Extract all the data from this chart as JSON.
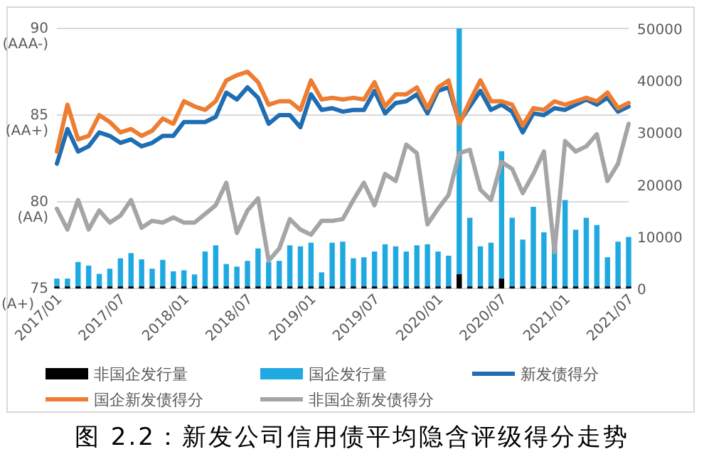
{
  "chart_data": {
    "type": "line",
    "title": "图 2.2：新发公司信用债平均隐含评级得分走势",
    "categories": [
      "2017/01",
      null,
      null,
      null,
      null,
      null,
      "2017/07",
      null,
      null,
      null,
      null,
      null,
      "2018/01",
      null,
      null,
      null,
      null,
      null,
      "2018/07",
      null,
      null,
      null,
      null,
      null,
      "2019/01",
      null,
      null,
      null,
      null,
      null,
      "2019/07",
      null,
      null,
      null,
      null,
      null,
      "2020/01",
      null,
      null,
      null,
      null,
      null,
      "2020/07",
      null,
      null,
      null,
      null,
      null,
      "2021/01",
      null,
      null,
      null,
      null,
      null,
      "2021/07"
    ],
    "series": [
      {
        "name": "非国企发行量",
        "type": "bar",
        "axis": "y2",
        "color": "#000000",
        "values": [
          400,
          400,
          400,
          400,
          400,
          400,
          400,
          400,
          400,
          400,
          400,
          400,
          400,
          400,
          400,
          400,
          400,
          400,
          400,
          400,
          400,
          400,
          400,
          400,
          400,
          400,
          400,
          400,
          400,
          400,
          400,
          400,
          400,
          400,
          400,
          400,
          400,
          400,
          2800,
          400,
          400,
          400,
          1900,
          400,
          400,
          400,
          400,
          400,
          400,
          400,
          400,
          400,
          400,
          400,
          400
        ]
      },
      {
        "name": "国企发行量",
        "type": "bar",
        "axis": "y2",
        "color": "#1fa9e1",
        "values": [
          1500,
          1500,
          4700,
          4000,
          2400,
          3400,
          5400,
          6400,
          5200,
          3400,
          5100,
          2900,
          3100,
          2300,
          6700,
          7900,
          4300,
          3800,
          4900,
          7300,
          4700,
          4900,
          7900,
          7700,
          8400,
          2700,
          8400,
          8600,
          5400,
          5600,
          6700,
          8100,
          7700,
          6700,
          7900,
          8100,
          6700,
          5900,
          47200,
          13200,
          7700,
          8400,
          24500,
          13200,
          9000,
          15300,
          10400,
          7600,
          16600,
          10900,
          13200,
          11800,
          5600,
          8600,
          9500
        ]
      },
      {
        "name": "新发债得分",
        "color": "#1f6db3",
        "values": [
          82.2,
          84.2,
          82.9,
          83.2,
          84.0,
          83.8,
          83.4,
          83.6,
          83.2,
          83.4,
          83.8,
          83.8,
          84.6,
          84.6,
          84.6,
          84.9,
          86.3,
          85.9,
          86.6,
          86.0,
          84.5,
          85.0,
          85.0,
          84.3,
          86.2,
          85.3,
          85.4,
          85.2,
          85.3,
          85.3,
          86.4,
          85.1,
          85.7,
          85.8,
          86.2,
          85.1,
          86.4,
          86.6,
          84.6,
          85.5,
          86.4,
          85.3,
          85.6,
          85.2,
          84.0,
          85.1,
          85.0,
          85.4,
          85.3,
          85.6,
          85.9,
          85.6,
          86.0,
          85.2,
          85.5
        ]
      },
      {
        "name": "国企新发债得分",
        "color": "#ed7d31",
        "values": [
          82.9,
          85.6,
          83.6,
          83.8,
          85.0,
          84.6,
          84.0,
          84.2,
          83.8,
          84.1,
          84.8,
          84.5,
          85.8,
          85.5,
          85.3,
          85.8,
          87.0,
          87.3,
          87.5,
          86.9,
          85.6,
          85.8,
          85.8,
          85.3,
          87.0,
          85.9,
          86.0,
          85.9,
          86.0,
          85.9,
          86.9,
          85.5,
          86.2,
          86.2,
          86.6,
          85.4,
          86.6,
          87.0,
          84.5,
          85.8,
          87.0,
          85.8,
          85.8,
          85.6,
          84.4,
          85.4,
          85.3,
          85.8,
          85.6,
          85.8,
          86.0,
          85.8,
          86.3,
          85.4,
          85.7
        ]
      },
      {
        "name": "非国企新发债得分",
        "color": "#a5a5a5",
        "values": [
          79.6,
          78.4,
          80.1,
          78.4,
          79.5,
          78.8,
          79.2,
          80.1,
          78.5,
          78.9,
          78.8,
          79.1,
          78.8,
          78.8,
          79.3,
          79.8,
          81.1,
          78.2,
          79.5,
          80.2,
          76.6,
          77.3,
          79.0,
          78.4,
          78.1,
          78.9,
          78.9,
          79.0,
          80.1,
          81.1,
          79.8,
          81.6,
          81.2,
          83.3,
          82.8,
          78.7,
          79.6,
          80.4,
          82.8,
          83.0,
          80.7,
          80.1,
          82.3,
          81.9,
          80.5,
          81.6,
          82.9,
          77.1,
          83.5,
          82.9,
          83.2,
          83.9,
          81.2,
          82.2,
          84.5
        ]
      }
    ],
    "ylim": [
      75,
      90
    ],
    "yticks": [
      {
        "value": 90,
        "label": "90 (AAA-)"
      },
      {
        "value": 85,
        "label": "85 (AA+)"
      },
      {
        "value": 80,
        "label": "80 (AA)"
      },
      {
        "value": 75,
        "label": "75 (A+)"
      }
    ],
    "y2lim": [
      0,
      50000
    ],
    "y2ticks": [
      0,
      10000,
      20000,
      30000,
      40000,
      50000
    ],
    "stacked": true,
    "grid": "y",
    "legend": "bottom"
  }
}
